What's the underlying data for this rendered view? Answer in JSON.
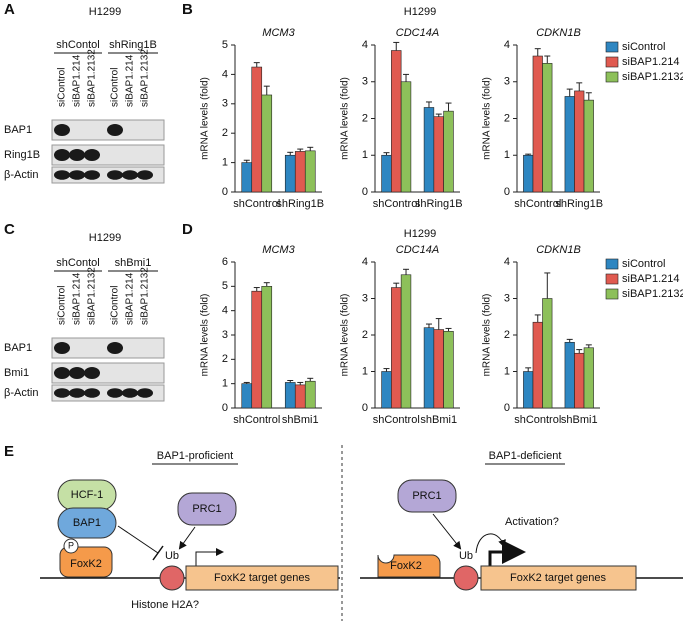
{
  "panel_a": {
    "label": "A",
    "cell_line": "H1299",
    "groups": [
      "shContol",
      "shRing1B"
    ],
    "lanes": [
      "siControl",
      "siBAP1.214",
      "siBAP1.2132",
      "siControl",
      "siBAP1.214",
      "siBAP1.2132"
    ],
    "rows": [
      "BAP1",
      "Ring1B",
      "β-Actin"
    ]
  },
  "panel_b": {
    "label": "B",
    "cell_line": "H1299"
  },
  "panel_c": {
    "label": "C",
    "cell_line": "H1299",
    "groups": [
      "shContol",
      "shBmi1"
    ],
    "lanes": [
      "siControl",
      "siBAP1.214",
      "siBAP1.2132",
      "siControl",
      "siBAP1.214",
      "siBAP1.2132"
    ],
    "rows": [
      "BAP1",
      "Bmi1",
      "β-Actin"
    ]
  },
  "panel_d": {
    "label": "D",
    "cell_line": "H1299"
  },
  "chart_data": [
    {
      "type": "bar",
      "title": "MCM3",
      "y_label": "mRNA levels (fold)",
      "categories": [
        "shControl",
        "shRing1B"
      ],
      "ylim": [
        0,
        5
      ],
      "yticks": [
        0,
        1,
        2,
        3,
        4,
        5
      ],
      "series": [
        {
          "name": "siControl",
          "color": "#2e86c1",
          "values": [
            1.0,
            1.25
          ],
          "errors": [
            0.08,
            0.1
          ]
        },
        {
          "name": "siBAP1.214",
          "color": "#e05a50",
          "values": [
            4.25,
            1.38
          ],
          "errors": [
            0.15,
            0.08
          ]
        },
        {
          "name": "siBAP1.2132",
          "color": "#8dc05a",
          "values": [
            3.3,
            1.4
          ],
          "errors": [
            0.3,
            0.12
          ]
        }
      ]
    },
    {
      "type": "bar",
      "title": "CDC14A",
      "y_label": "mRNA levels (fold)",
      "categories": [
        "shControl",
        "shRing1B"
      ],
      "ylim": [
        0,
        4
      ],
      "yticks": [
        0,
        1,
        2,
        3,
        4
      ],
      "series": [
        {
          "name": "siControl",
          "color": "#2e86c1",
          "values": [
            1.0,
            2.3
          ],
          "errors": [
            0.07,
            0.15
          ]
        },
        {
          "name": "siBAP1.214",
          "color": "#e05a50",
          "values": [
            3.85,
            2.05
          ],
          "errors": [
            0.22,
            0.07
          ]
        },
        {
          "name": "siBAP1.2132",
          "color": "#8dc05a",
          "values": [
            3.0,
            2.2
          ],
          "errors": [
            0.2,
            0.22
          ]
        }
      ]
    },
    {
      "type": "bar",
      "title": "CDKN1B",
      "y_label": "mRNA levels (fold)",
      "categories": [
        "shControl",
        "shRing1B"
      ],
      "ylim": [
        0,
        4
      ],
      "yticks": [
        0,
        1,
        2,
        3,
        4
      ],
      "legend": "right",
      "series": [
        {
          "name": "siControl",
          "color": "#2e86c1",
          "values": [
            1.0,
            2.6
          ],
          "errors": [
            0.03,
            0.2
          ]
        },
        {
          "name": "siBAP1.214",
          "color": "#e05a50",
          "values": [
            3.7,
            2.75
          ],
          "errors": [
            0.2,
            0.22
          ]
        },
        {
          "name": "siBAP1.2132",
          "color": "#8dc05a",
          "values": [
            3.5,
            2.5
          ],
          "errors": [
            0.2,
            0.2
          ]
        }
      ]
    },
    {
      "type": "bar",
      "title": "MCM3",
      "y_label": "mRNA levels (fold)",
      "categories": [
        "shControl",
        "shBmi1"
      ],
      "ylim": [
        0,
        6
      ],
      "yticks": [
        0,
        1,
        2,
        3,
        4,
        5,
        6
      ],
      "series": [
        {
          "name": "siControl",
          "color": "#2e86c1",
          "values": [
            1.0,
            1.05
          ],
          "errors": [
            0.05,
            0.08
          ]
        },
        {
          "name": "siBAP1.214",
          "color": "#e05a50",
          "values": [
            4.8,
            0.95
          ],
          "errors": [
            0.15,
            0.1
          ]
        },
        {
          "name": "siBAP1.2132",
          "color": "#8dc05a",
          "values": [
            5.0,
            1.1
          ],
          "errors": [
            0.15,
            0.12
          ]
        }
      ]
    },
    {
      "type": "bar",
      "title": "CDC14A",
      "y_label": "mRNA levels (fold)",
      "categories": [
        "shControl",
        "shBmi1"
      ],
      "ylim": [
        0,
        4
      ],
      "yticks": [
        0,
        1,
        2,
        3,
        4
      ],
      "series": [
        {
          "name": "siControl",
          "color": "#2e86c1",
          "values": [
            1.0,
            2.2
          ],
          "errors": [
            0.08,
            0.1
          ]
        },
        {
          "name": "siBAP1.214",
          "color": "#e05a50",
          "values": [
            3.3,
            2.15
          ],
          "errors": [
            0.12,
            0.3
          ]
        },
        {
          "name": "siBAP1.2132",
          "color": "#8dc05a",
          "values": [
            3.65,
            2.1
          ],
          "errors": [
            0.15,
            0.08
          ]
        }
      ]
    },
    {
      "type": "bar",
      "title": "CDKN1B",
      "y_label": "mRNA levels (fold)",
      "categories": [
        "shControl",
        "shBmi1"
      ],
      "ylim": [
        0,
        4
      ],
      "yticks": [
        0,
        1,
        2,
        3,
        4
      ],
      "legend": "right",
      "series": [
        {
          "name": "siControl",
          "color": "#2e86c1",
          "values": [
            1.0,
            1.8
          ],
          "errors": [
            0.1,
            0.08
          ]
        },
        {
          "name": "siBAP1.214",
          "color": "#e05a50",
          "values": [
            2.35,
            1.5
          ],
          "errors": [
            0.2,
            0.1
          ]
        },
        {
          "name": "siBAP1.2132",
          "color": "#8dc05a",
          "values": [
            3.0,
            1.65
          ],
          "errors": [
            0.7,
            0.08
          ]
        }
      ]
    }
  ],
  "panel_e": {
    "label": "E",
    "left": {
      "title": "BAP1-proficient",
      "hcf1": "HCF-1",
      "bap1": "BAP1",
      "prc1": "PRC1",
      "phospho": "P",
      "foxk2": "FoxK2",
      "ub": "Ub",
      "target": "FoxK2 target genes",
      "histone": "Histone H2A?"
    },
    "right": {
      "title": "BAP1-deficient",
      "prc1": "PRC1",
      "foxk2": "FoxK2",
      "ub": "Ub",
      "activation": "Activation?",
      "target": "FoxK2 target genes"
    }
  }
}
